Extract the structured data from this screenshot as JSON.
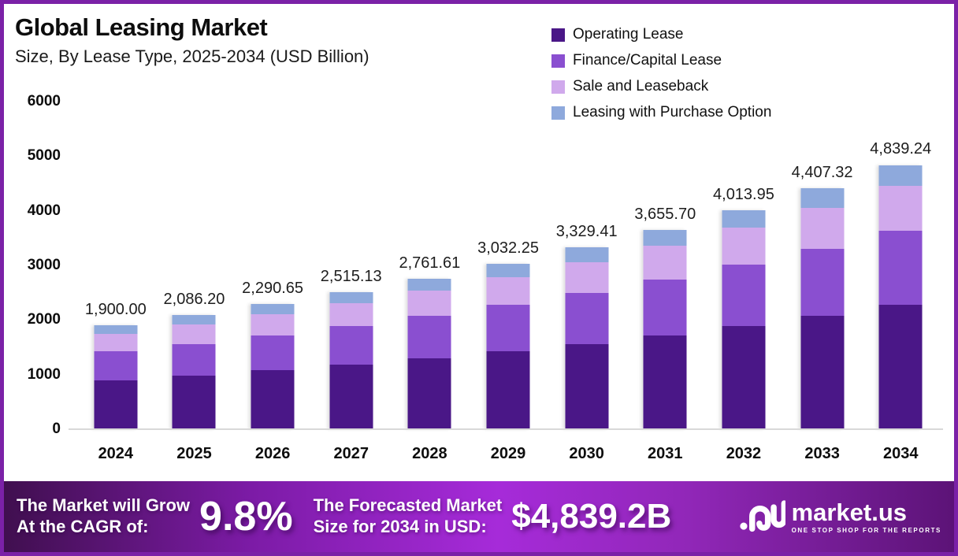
{
  "frame": {
    "border_color": "#7B21A7",
    "background": "#FFFFFF"
  },
  "header": {
    "title": "Global Leasing Market",
    "subtitle": "Size, By Lease Type, 2025-2034 (USD Billion)"
  },
  "chart_data": {
    "type": "bar",
    "stacked": true,
    "grid": false,
    "legend_position": "top-right",
    "ylim": [
      0,
      6000
    ],
    "yticks": [
      6000,
      5000,
      4000,
      3000,
      2000,
      1000,
      0
    ],
    "categories": [
      "2024",
      "2025",
      "2026",
      "2027",
      "2028",
      "2029",
      "2030",
      "2031",
      "2032",
      "2033",
      "2034"
    ],
    "series": [
      {
        "name": "Operating Lease",
        "color": "#4A1787",
        "values": [
          893.0,
          980.51,
          1076.61,
          1182.11,
          1297.96,
          1425.16,
          1564.82,
          1718.18,
          1886.56,
          2071.44,
          2274.44
        ]
      },
      {
        "name": "Finance/Capital Lease",
        "color": "#8A4FD0",
        "values": [
          532.0,
          584.14,
          641.38,
          704.24,
          773.25,
          849.03,
          932.23,
          1023.6,
          1123.91,
          1234.05,
          1354.99
        ]
      },
      {
        "name": "Sale and Leaseback",
        "color": "#D0A9EC",
        "values": [
          323.0,
          354.65,
          389.41,
          427.57,
          469.47,
          515.48,
          566.0,
          621.47,
          682.37,
          749.24,
          822.67
        ]
      },
      {
        "name": "Leasing with Purchase Option",
        "color": "#8EA9DC",
        "values": [
          152.0,
          166.9,
          183.25,
          201.21,
          220.93,
          242.58,
          266.35,
          292.46,
          321.12,
          352.59,
          387.14
        ]
      }
    ],
    "totals": [
      1900.0,
      2086.2,
      2290.65,
      2515.13,
      2761.61,
      3032.25,
      3329.41,
      3655.7,
      4013.95,
      4407.32,
      4839.24
    ],
    "total_labels": [
      "1,900.00",
      "2,086.20",
      "2,290.65",
      "2,515.13",
      "2,761.61",
      "3,032.25",
      "3,329.41",
      "3,655.70",
      "4,013.95",
      "4,407.32",
      "4,839.24"
    ]
  },
  "banner": {
    "cagr_label_line1": "The Market will Grow",
    "cagr_label_line2": "At the CAGR of:",
    "cagr_value": "9.8%",
    "forecast_label_line1": "The Forecasted Market",
    "forecast_label_line2": "Size for 2034 in USD:",
    "forecast_value": "$4,839.2B",
    "brand": {
      "name": "market.us",
      "tagline": "ONE STOP SHOP FOR THE REPORTS"
    }
  }
}
